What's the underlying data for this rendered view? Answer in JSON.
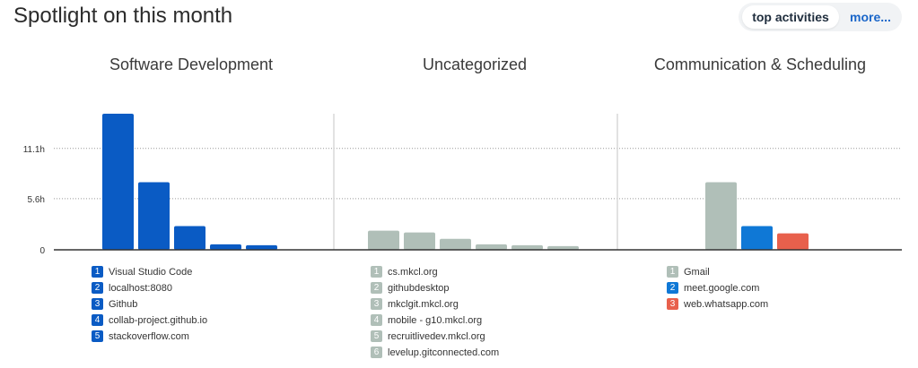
{
  "header": {
    "title": "Spotlight on this month",
    "tabs": [
      {
        "label": "top activities",
        "active": true
      },
      {
        "label": "more..."
      }
    ]
  },
  "colors": {
    "dev_blue": "#0a5bc4",
    "gray": "#b0bfb8",
    "meet_blue": "#0f78d6",
    "whatsapp_red": "#e8604c",
    "more_link": "#1a66c9"
  },
  "chart_data": {
    "type": "bar",
    "y_unit": "hours",
    "yticks": [
      {
        "value": 0,
        "label": "0"
      },
      {
        "value": 5.6,
        "label": "5.6h"
      },
      {
        "value": 11.1,
        "label": "11.1h"
      }
    ],
    "ylim": [
      0,
      16
    ],
    "groups": [
      {
        "title": "Software Development",
        "items": [
          {
            "rank": "1",
            "name": "Visual Studio Code",
            "value": 14.9,
            "color": "#0a5bc4"
          },
          {
            "rank": "2",
            "name": "localhost:8080",
            "value": 7.4,
            "color": "#0a5bc4"
          },
          {
            "rank": "3",
            "name": "Github",
            "value": 2.6,
            "color": "#0a5bc4"
          },
          {
            "rank": "4",
            "name": "collab-project.github.io",
            "value": 0.6,
            "color": "#0a5bc4"
          },
          {
            "rank": "5",
            "name": "stackoverflow.com",
            "value": 0.5,
            "color": "#0a5bc4"
          }
        ]
      },
      {
        "title": "Uncategorized",
        "items": [
          {
            "rank": "1",
            "name": "cs.mkcl.org",
            "value": 2.1,
            "color": "#b0bfb8"
          },
          {
            "rank": "2",
            "name": "githubdesktop",
            "value": 1.9,
            "color": "#b0bfb8"
          },
          {
            "rank": "3",
            "name": "mkclgit.mkcl.org",
            "value": 1.2,
            "color": "#b0bfb8"
          },
          {
            "rank": "4",
            "name": "mobile - g10.mkcl.org",
            "value": 0.6,
            "color": "#b0bfb8"
          },
          {
            "rank": "5",
            "name": "recruitlivedev.mkcl.org",
            "value": 0.5,
            "color": "#b0bfb8"
          },
          {
            "rank": "6",
            "name": "levelup.gitconnected.com",
            "value": 0.4,
            "color": "#b0bfb8"
          }
        ]
      },
      {
        "title": "Communication & Scheduling",
        "items": [
          {
            "rank": "1",
            "name": "Gmail",
            "value": 7.4,
            "color": "#b0bfb8"
          },
          {
            "rank": "2",
            "name": "meet.google.com",
            "value": 2.6,
            "color": "#0f78d6"
          },
          {
            "rank": "3",
            "name": "web.whatsapp.com",
            "value": 1.8,
            "color": "#e8604c"
          }
        ]
      }
    ]
  }
}
